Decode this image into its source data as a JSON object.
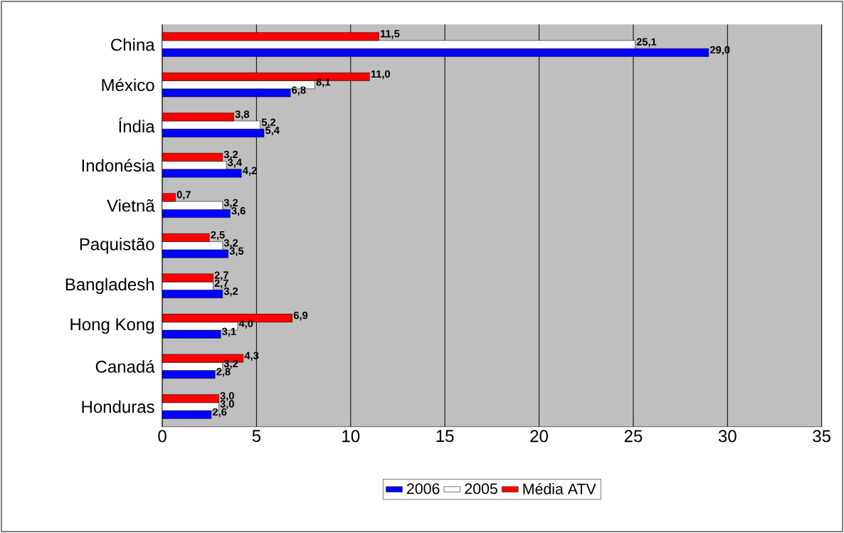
{
  "chart_data": {
    "type": "bar",
    "orientation": "horizontal",
    "categories": [
      "China",
      "México",
      "Índia",
      "Indonésia",
      "Vietnã",
      "Paquistão",
      "Bangladesh",
      "Hong Kong",
      "Canadá",
      "Honduras"
    ],
    "series": [
      {
        "name": "2006",
        "color": "#0000ff",
        "values": [
          29.0,
          6.8,
          5.4,
          4.2,
          3.6,
          3.5,
          3.2,
          3.1,
          2.8,
          2.6
        ],
        "value_labels": [
          "29,0",
          "6,8",
          "5,4",
          "4,2",
          "3,6",
          "3,5",
          "3,2",
          "3,1",
          "2,8",
          "2,6"
        ]
      },
      {
        "name": "2005",
        "color": "#ffffff",
        "values": [
          25.1,
          8.1,
          5.2,
          3.4,
          3.2,
          3.2,
          2.7,
          4.0,
          3.2,
          3.0
        ],
        "value_labels": [
          "25,1",
          "8,1",
          "5,2",
          "3,4",
          "3,2",
          "3,2",
          "2,7",
          "4,0",
          "3,2",
          "3,0"
        ]
      },
      {
        "name": "Média ATV",
        "color": "#ff0000",
        "values": [
          11.5,
          11.0,
          3.8,
          3.2,
          0.7,
          2.5,
          2.7,
          6.9,
          4.3,
          3.0
        ],
        "value_labels": [
          "11,5",
          "11,0",
          "3,8",
          "3,2",
          "0,7",
          "2,5",
          "2,7",
          "6,9",
          "4,3",
          "3,0"
        ]
      }
    ],
    "xlim": [
      0,
      35
    ],
    "xticks": [
      0,
      5,
      10,
      15,
      20,
      25,
      30,
      35
    ],
    "grid": "x",
    "legend": "bottom"
  }
}
